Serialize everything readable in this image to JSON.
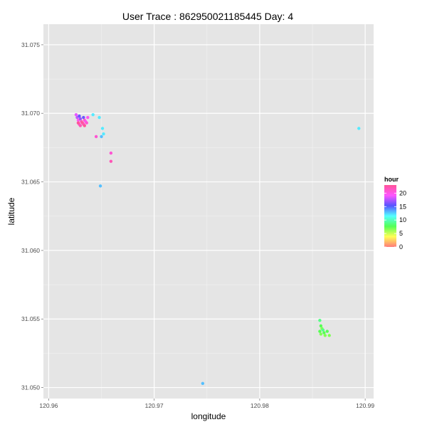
{
  "chart_data": {
    "type": "scatter",
    "title": "User Trace : 862950021185445  Day:  4",
    "xlabel": "longitude",
    "ylabel": "latitude",
    "xlim": [
      120.9595,
      120.9908
    ],
    "ylim": [
      31.0492,
      31.0765
    ],
    "x_ticks": [
      120.96,
      120.97,
      120.98,
      120.99
    ],
    "x_tick_labels": [
      "120.96",
      "120.97",
      "120.98",
      "120.99"
    ],
    "y_ticks": [
      31.05,
      31.055,
      31.06,
      31.065,
      31.07,
      31.075
    ],
    "y_tick_labels": [
      "31.050",
      "31.055",
      "31.060",
      "31.065",
      "31.070",
      "31.075"
    ],
    "grid": true,
    "background": "#e5e5e5",
    "legend": {
      "title": "hour",
      "placement": "right",
      "range": [
        0,
        23
      ],
      "ticks": [
        0,
        5,
        10,
        15,
        20
      ],
      "tick_labels": [
        "0",
        "5",
        "10",
        "15",
        "20"
      ]
    },
    "points": [
      {
        "x": 120.9626,
        "y": 31.0699,
        "hour": 19
      },
      {
        "x": 120.9627,
        "y": 31.0697,
        "hour": 18
      },
      {
        "x": 120.9628,
        "y": 31.0695,
        "hour": 20
      },
      {
        "x": 120.9629,
        "y": 31.0692,
        "hour": 21
      },
      {
        "x": 120.963,
        "y": 31.0696,
        "hour": 17
      },
      {
        "x": 120.9631,
        "y": 31.0694,
        "hour": 22
      },
      {
        "x": 120.9632,
        "y": 31.0693,
        "hour": 23
      },
      {
        "x": 120.963,
        "y": 31.0691,
        "hour": 22
      },
      {
        "x": 120.9633,
        "y": 31.0697,
        "hour": 16
      },
      {
        "x": 120.9634,
        "y": 31.0695,
        "hour": 21
      },
      {
        "x": 120.9635,
        "y": 31.0694,
        "hour": 20
      },
      {
        "x": 120.9633,
        "y": 31.0692,
        "hour": 22
      },
      {
        "x": 120.9636,
        "y": 31.0693,
        "hour": 21
      },
      {
        "x": 120.9637,
        "y": 31.0697,
        "hour": 20
      },
      {
        "x": 120.9629,
        "y": 31.0698,
        "hour": 16
      },
      {
        "x": 120.9628,
        "y": 31.0693,
        "hour": 23
      },
      {
        "x": 120.9634,
        "y": 31.0691,
        "hour": 23
      },
      {
        "x": 120.9642,
        "y": 31.0699,
        "hour": 12
      },
      {
        "x": 120.9648,
        "y": 31.0697,
        "hour": 12
      },
      {
        "x": 120.9651,
        "y": 31.0689,
        "hour": 12
      },
      {
        "x": 120.9652,
        "y": 31.0685,
        "hour": 12
      },
      {
        "x": 120.965,
        "y": 31.0683,
        "hour": 13
      },
      {
        "x": 120.9645,
        "y": 31.0683,
        "hour": 21
      },
      {
        "x": 120.9659,
        "y": 31.0671,
        "hour": 21
      },
      {
        "x": 120.9659,
        "y": 31.0665,
        "hour": 22
      },
      {
        "x": 120.9649,
        "y": 31.0647,
        "hour": 13
      },
      {
        "x": 120.9894,
        "y": 31.0689,
        "hour": 12
      },
      {
        "x": 120.9746,
        "y": 31.0503,
        "hour": 13
      },
      {
        "x": 120.9857,
        "y": 31.0549,
        "hour": 9
      },
      {
        "x": 120.9858,
        "y": 31.0545,
        "hour": 8
      },
      {
        "x": 120.9859,
        "y": 31.0543,
        "hour": 7
      },
      {
        "x": 120.9857,
        "y": 31.0541,
        "hour": 8
      },
      {
        "x": 120.986,
        "y": 31.0542,
        "hour": 9
      },
      {
        "x": 120.9858,
        "y": 31.0539,
        "hour": 7
      },
      {
        "x": 120.9861,
        "y": 31.054,
        "hour": 8
      },
      {
        "x": 120.9862,
        "y": 31.0538,
        "hour": 7
      },
      {
        "x": 120.9864,
        "y": 31.0541,
        "hour": 8
      },
      {
        "x": 120.9866,
        "y": 31.0538,
        "hour": 7
      }
    ]
  }
}
